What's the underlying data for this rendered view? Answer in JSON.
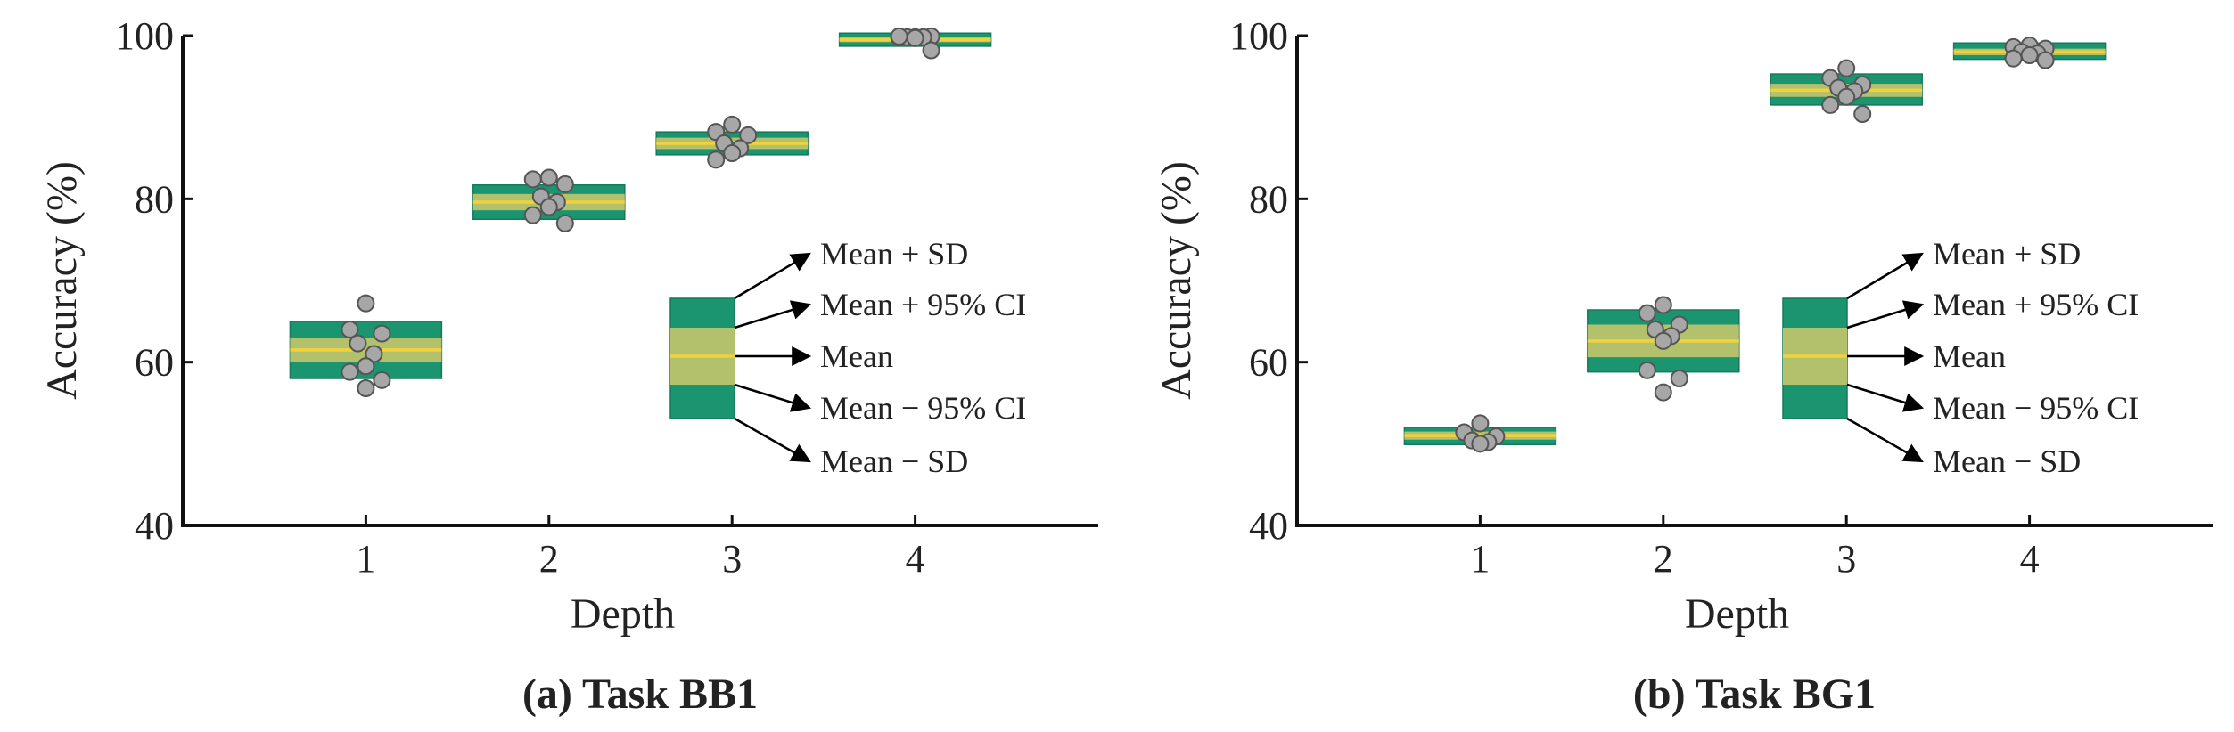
{
  "colors": {
    "sd_band": "#1b9470",
    "ci_band": "#b3c06c",
    "mean_line": "#f2d23a",
    "point_fill": "#a7a7a7",
    "point_stroke": "#555555"
  },
  "legend": {
    "labels": [
      "Mean + SD",
      "Mean + 95% CI",
      "Mean",
      "Mean − 95% CI",
      "Mean − SD"
    ]
  },
  "chart_data": [
    {
      "type": "box",
      "caption": "(a) Task BB1",
      "xlabel": "Depth",
      "ylabel": "Accuracy (%)",
      "categories": [
        "1",
        "2",
        "3",
        "4"
      ],
      "xlim": [
        0,
        5
      ],
      "ylim": [
        40,
        100
      ],
      "yticks": [
        40,
        60,
        80,
        100
      ],
      "ytick_labels": [
        "40",
        "60",
        "80",
        "100"
      ],
      "boxes": [
        {
          "x": 1,
          "mean": 61.5,
          "ci": [
            60.0,
            63.0
          ],
          "sd": [
            58.0,
            65.0
          ],
          "points": [
            67.2,
            64.0,
            63.5,
            62.3,
            61.0,
            59.5,
            58.8,
            57.8,
            56.8
          ]
        },
        {
          "x": 2,
          "mean": 79.6,
          "ci": [
            78.6,
            80.6
          ],
          "sd": [
            77.5,
            81.7
          ],
          "points": [
            82.6,
            82.4,
            81.8,
            80.3,
            79.6,
            79.0,
            78.0,
            77.0
          ]
        },
        {
          "x": 3,
          "mean": 86.8,
          "ci": [
            86.1,
            87.5
          ],
          "sd": [
            85.4,
            88.2
          ],
          "points": [
            89.1,
            88.2,
            87.8,
            86.8,
            86.2,
            85.6,
            84.8
          ]
        },
        {
          "x": 4,
          "mean": 99.5,
          "ci": [
            99.2,
            99.8
          ],
          "sd": [
            98.7,
            100.3
          ],
          "points": [
            99.8,
            99.8,
            99.9,
            99.8,
            99.8,
            99.7,
            99.9,
            98.2
          ]
        }
      ]
    },
    {
      "type": "box",
      "caption": "(b) Task BG1",
      "xlabel": "Depth",
      "ylabel": "Accuracy (%)",
      "categories": [
        "1",
        "2",
        "3",
        "4"
      ],
      "xlim": [
        0,
        5
      ],
      "ylim": [
        40,
        100
      ],
      "yticks": [
        40,
        60,
        80,
        100
      ],
      "ytick_labels": [
        "40",
        "60",
        "80",
        "100"
      ],
      "boxes": [
        {
          "x": 1,
          "mean": 51.0,
          "ci": [
            50.5,
            51.5
          ],
          "sd": [
            49.9,
            52.0
          ],
          "points": [
            52.5,
            51.4,
            50.9,
            50.4,
            50.2,
            50.0
          ]
        },
        {
          "x": 2,
          "mean": 62.6,
          "ci": [
            60.6,
            64.6
          ],
          "sd": [
            58.8,
            66.4
          ],
          "points": [
            67.0,
            66.0,
            64.6,
            64.0,
            63.2,
            62.6,
            59.0,
            58.0,
            56.3
          ]
        },
        {
          "x": 3,
          "mean": 93.3,
          "ci": [
            92.5,
            94.1
          ],
          "sd": [
            91.5,
            95.3
          ],
          "points": [
            96.0,
            94.8,
            94.0,
            93.6,
            93.2,
            92.5,
            91.5,
            90.4
          ]
        },
        {
          "x": 4,
          "mean": 98.0,
          "ci": [
            97.6,
            98.4
          ],
          "sd": [
            97.1,
            99.1
          ],
          "points": [
            98.8,
            98.6,
            98.4,
            98.0,
            97.8,
            97.6,
            97.2,
            97.0
          ]
        }
      ]
    }
  ]
}
